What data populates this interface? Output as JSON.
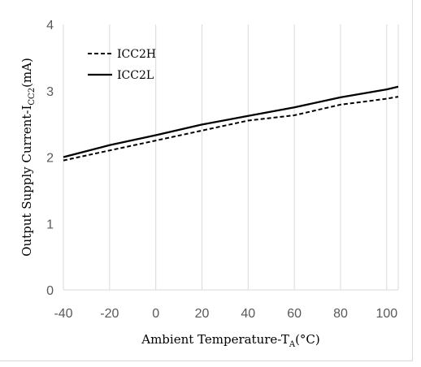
{
  "chart_data": {
    "type": "line",
    "x": [
      -40,
      -20,
      0,
      20,
      40,
      60,
      80,
      100,
      105
    ],
    "series": [
      {
        "name": "ICC2H",
        "values": [
          1.95,
          2.1,
          2.25,
          2.4,
          2.55,
          2.63,
          2.79,
          2.88,
          2.91
        ],
        "style": "dashed",
        "color": "#000000"
      },
      {
        "name": "ICC2L",
        "values": [
          2.0,
          2.18,
          2.33,
          2.49,
          2.62,
          2.75,
          2.9,
          3.02,
          3.06
        ],
        "style": "solid",
        "color": "#000000"
      }
    ],
    "xlim": [
      -40,
      105
    ],
    "ylim": [
      0,
      4
    ],
    "xticks": [
      "-40",
      "-20",
      "0",
      "20",
      "40",
      "60",
      "80",
      "100"
    ],
    "yticks": [
      "0",
      "1",
      "2",
      "3",
      "4"
    ],
    "xlabel": {
      "main": "Ambient Temperature-T",
      "sub": "A",
      "tail": "(°C)"
    },
    "ylabel": {
      "main": "Output Supply Current-I",
      "sub": "CC2",
      "tail": "(mA)"
    },
    "grid": "vertical",
    "legend": "top-left",
    "colors": {
      "grid": "#d9d9d9",
      "tick_text": "#595959"
    }
  }
}
